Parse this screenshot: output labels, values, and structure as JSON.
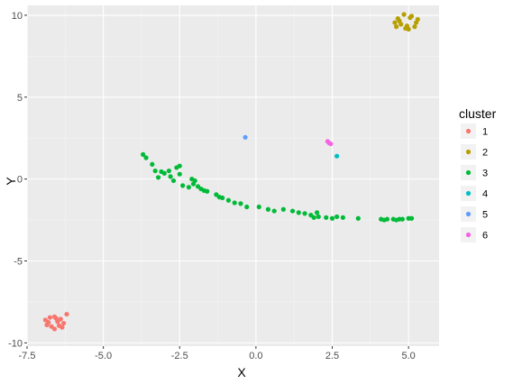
{
  "chart_data": {
    "type": "scatter",
    "xlabel": "X",
    "ylabel": "Y",
    "xlim": [
      -7.5,
      6.0
    ],
    "ylim": [
      -10.2,
      10.6
    ],
    "x_ticks": [
      -7.5,
      -5.0,
      -2.5,
      0.0,
      2.5,
      5.0
    ],
    "x_tick_labels": [
      "-7.5",
      "-5.0",
      "-2.5",
      "0.0",
      "2.5",
      "5.0"
    ],
    "y_ticks": [
      -10,
      -5,
      0,
      5,
      10
    ],
    "y_tick_labels": [
      "-10",
      "-5",
      "0",
      "5",
      "10"
    ],
    "grid": true,
    "legend": {
      "title": "cluster",
      "placement": "right"
    },
    "series": [
      {
        "name": "1",
        "color": "#F8766D",
        "points": [
          [
            -6.9,
            -8.6
          ],
          [
            -6.85,
            -8.9
          ],
          [
            -6.75,
            -8.45
          ],
          [
            -6.7,
            -9.0
          ],
          [
            -6.6,
            -9.15
          ],
          [
            -6.55,
            -8.5
          ],
          [
            -6.5,
            -8.7
          ],
          [
            -6.45,
            -8.95
          ],
          [
            -6.4,
            -8.55
          ],
          [
            -6.35,
            -9.05
          ],
          [
            -6.3,
            -8.8
          ],
          [
            -6.2,
            -8.25
          ],
          [
            -6.8,
            -8.75
          ],
          [
            -6.6,
            -8.4
          ]
        ]
      },
      {
        "name": "2",
        "color": "#B79F00",
        "points": [
          [
            4.55,
            9.55
          ],
          [
            4.6,
            9.3
          ],
          [
            4.65,
            9.8
          ],
          [
            4.75,
            9.45
          ],
          [
            4.85,
            10.05
          ],
          [
            4.9,
            9.2
          ],
          [
            5.0,
            9.15
          ],
          [
            5.05,
            9.85
          ],
          [
            5.1,
            9.95
          ],
          [
            5.2,
            9.3
          ],
          [
            5.25,
            9.55
          ],
          [
            5.3,
            9.75
          ],
          [
            4.7,
            9.65
          ],
          [
            4.95,
            9.35
          ]
        ]
      },
      {
        "name": "3",
        "color": "#00BA38",
        "points": [
          [
            -3.7,
            1.5
          ],
          [
            -3.6,
            1.3
          ],
          [
            -3.4,
            0.9
          ],
          [
            -3.3,
            0.5
          ],
          [
            -3.2,
            0.1
          ],
          [
            -3.1,
            0.45
          ],
          [
            -3.0,
            0.35
          ],
          [
            -2.85,
            0.5
          ],
          [
            -2.8,
            0.15
          ],
          [
            -2.7,
            -0.1
          ],
          [
            -2.6,
            0.7
          ],
          [
            -2.5,
            0.8
          ],
          [
            -2.5,
            0.3
          ],
          [
            -2.4,
            -0.4
          ],
          [
            -2.2,
            -0.5
          ],
          [
            -2.1,
            0.0
          ],
          [
            -2.05,
            -0.3
          ],
          [
            -2.0,
            -0.1
          ],
          [
            -1.9,
            -0.45
          ],
          [
            -1.8,
            -0.6
          ],
          [
            -1.7,
            -0.7
          ],
          [
            -1.6,
            -0.75
          ],
          [
            -1.3,
            -0.95
          ],
          [
            -1.2,
            -1.1
          ],
          [
            -1.1,
            -1.15
          ],
          [
            -0.9,
            -1.3
          ],
          [
            -0.7,
            -1.45
          ],
          [
            -0.5,
            -1.5
          ],
          [
            -0.3,
            -1.7
          ],
          [
            0.1,
            -1.7
          ],
          [
            0.4,
            -1.85
          ],
          [
            0.6,
            -1.95
          ],
          [
            0.9,
            -1.85
          ],
          [
            1.2,
            -1.95
          ],
          [
            1.4,
            -2.05
          ],
          [
            1.6,
            -2.1
          ],
          [
            1.8,
            -2.2
          ],
          [
            1.9,
            -2.35
          ],
          [
            2.0,
            -2.05
          ],
          [
            2.05,
            -2.3
          ],
          [
            2.3,
            -2.35
          ],
          [
            2.5,
            -2.4
          ],
          [
            2.65,
            -2.3
          ],
          [
            2.85,
            -2.35
          ],
          [
            3.35,
            -2.4
          ],
          [
            4.1,
            -2.45
          ],
          [
            4.2,
            -2.5
          ],
          [
            4.3,
            -2.45
          ],
          [
            4.5,
            -2.45
          ],
          [
            4.6,
            -2.5
          ],
          [
            4.7,
            -2.45
          ],
          [
            4.8,
            -2.45
          ],
          [
            5.0,
            -2.4
          ],
          [
            5.1,
            -2.4
          ]
        ]
      },
      {
        "name": "4",
        "color": "#00BFC4",
        "points": [
          [
            2.65,
            1.4
          ]
        ]
      },
      {
        "name": "5",
        "color": "#619CFF",
        "points": [
          [
            -0.35,
            2.55
          ]
        ]
      },
      {
        "name": "6",
        "color": "#F564E3",
        "points": [
          [
            2.35,
            2.3
          ],
          [
            2.4,
            2.2
          ],
          [
            2.45,
            2.15
          ]
        ]
      }
    ]
  }
}
